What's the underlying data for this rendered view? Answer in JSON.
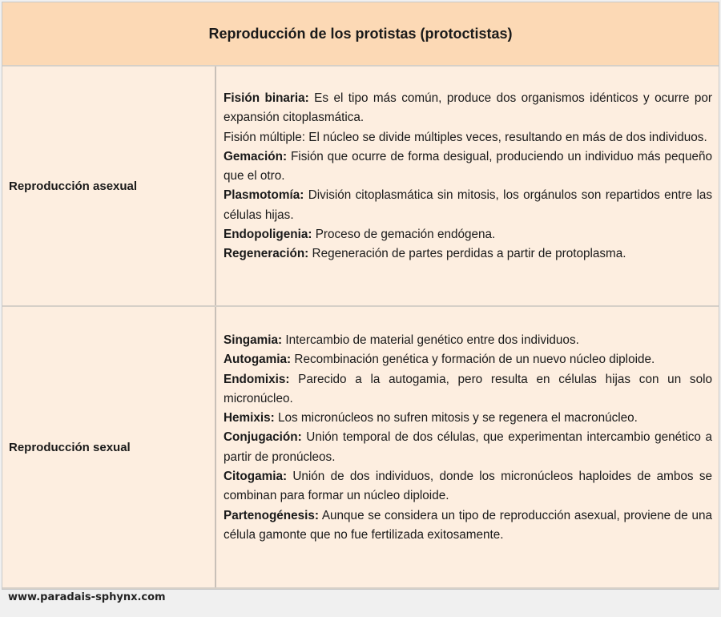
{
  "title": "Reproducción de los  protistas (protoctistas)",
  "rows": [
    {
      "label": "Reproducción asexual",
      "entries": [
        {
          "term": "Fisión binaria:",
          "text": " Es el tipo más común, produce dos organismos idénticos y ocurre por expansión citoplasmática."
        },
        {
          "term": "",
          "text": "Fisión múltiple: El núcleo se divide múltiples veces, resultando en más de dos individuos."
        },
        {
          "term": "Gemación:",
          "text": " Fisión que ocurre de forma desigual, produciendo un individuo más pequeño que el otro."
        },
        {
          "term": "Plasmotomía:",
          "text": " División citoplasmática sin mitosis, los orgánulos son repartidos entre las células hijas."
        },
        {
          "term": "Endopoligenia:",
          "text": " Proceso de gemación endógena."
        },
        {
          "term": "Regeneración:",
          "text": " Regeneración de partes perdidas a partir de protoplasma."
        }
      ]
    },
    {
      "label": "Reproducción sexual",
      "entries": [
        {
          "term": "Singamia:",
          "text": " Intercambio de material genético entre dos individuos."
        },
        {
          "term": "Autogamia:",
          "text": " Recombinación genética y formación de un nuevo núcleo diploide."
        },
        {
          "term": "Endomixis:",
          "text": " Parecido a la autogamia, pero resulta en células hijas con un solo micronúcleo."
        },
        {
          "term": "Hemixis:",
          "text": " Los micronúcleos no sufren mitosis y se regenera el macronúcleo."
        },
        {
          "term": "Conjugación:",
          "text": " Unión temporal de dos células, que experimentan intercambio genético a partir de pronúcleos."
        },
        {
          "term": "Citogamia:",
          "text": " Unión de dos individuos, donde los micronúcleos haploides de ambos se combinan para formar un núcleo diploide."
        },
        {
          "term": "Partenogénesis:",
          "text": " Aunque se considera un tipo de reproducción asexual, proviene de una célula gamonte que no fue fertilizada exitosamente."
        }
      ]
    }
  ],
  "footer": "www.paradais-sphynx.com",
  "colors": {
    "header_bg": "#fcd9b5",
    "cell_bg": "#fdeee0",
    "page_bg": "#f0f0f0"
  }
}
